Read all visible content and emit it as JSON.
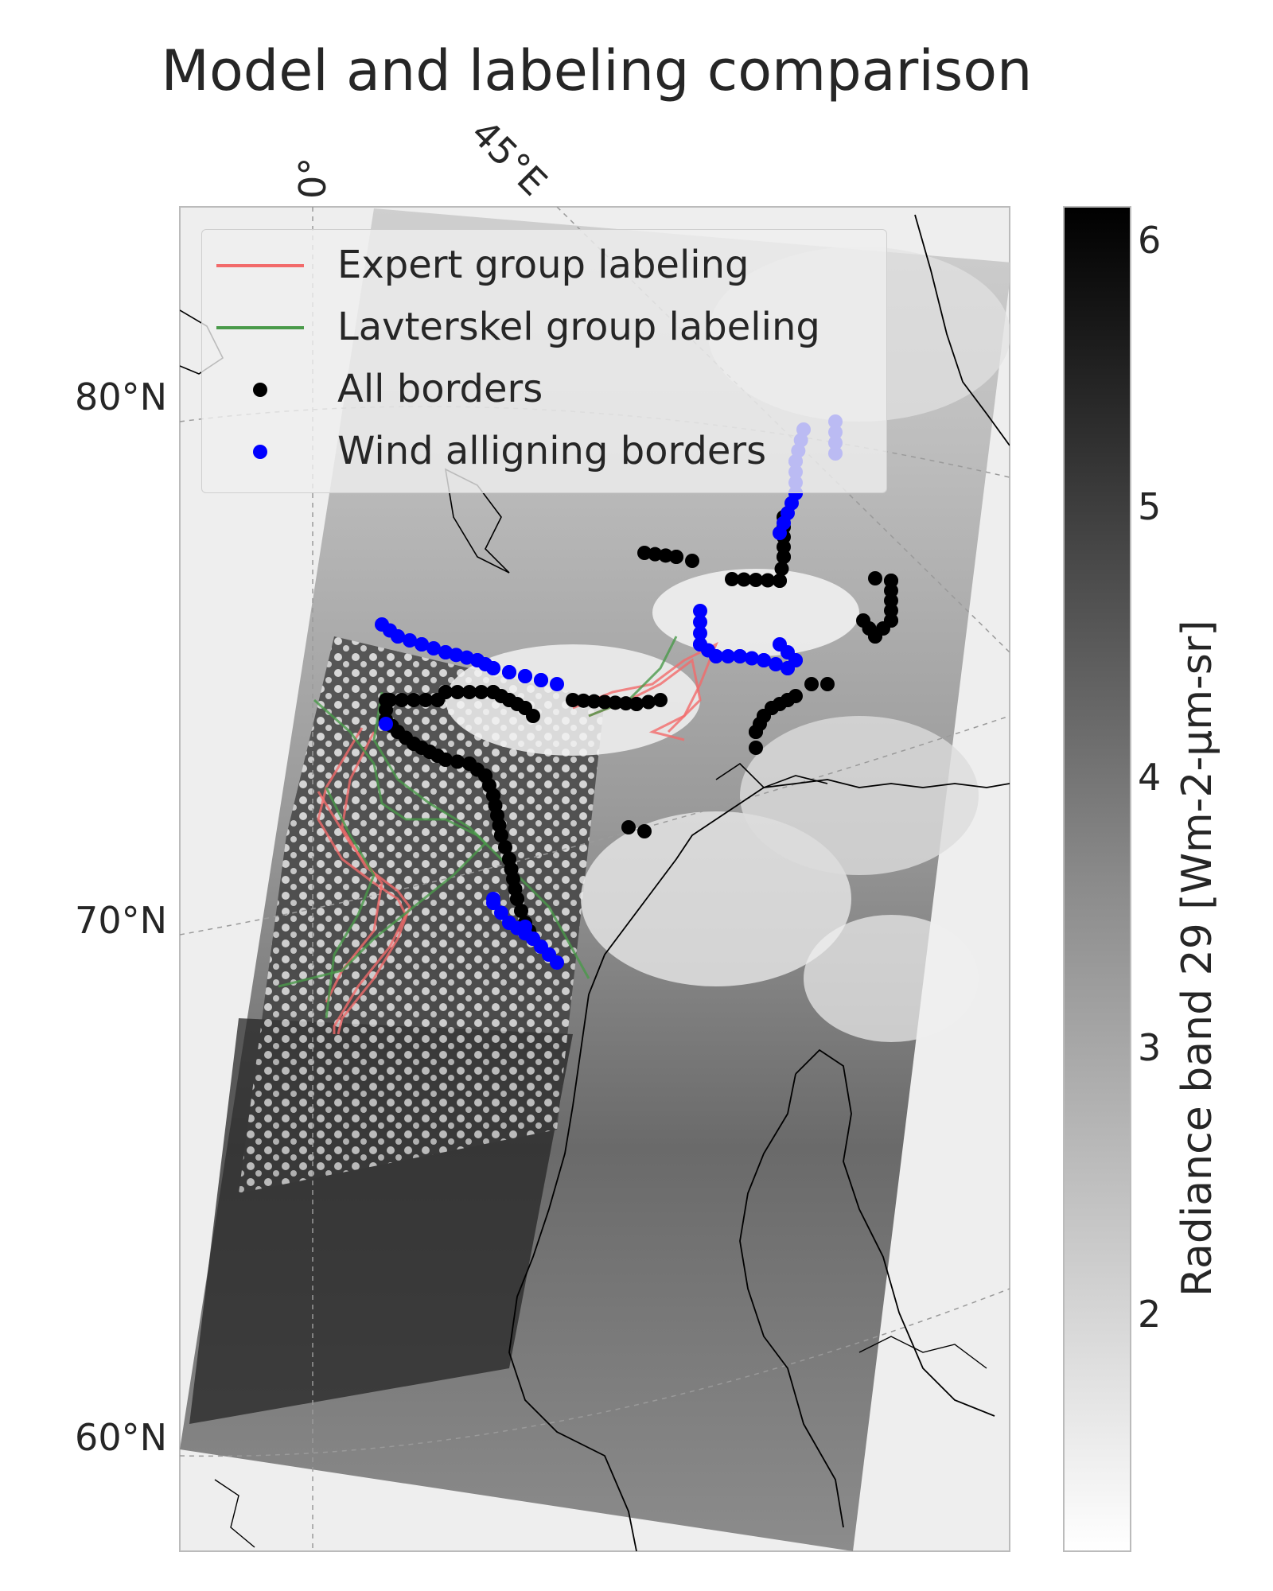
{
  "title": "Model and labeling comparison",
  "map": {
    "lat_labels": [
      "80°N",
      "70°N",
      "60°N"
    ],
    "lon_labels": [
      "0°",
      "45°E"
    ],
    "colormap": "greys",
    "background_color": "#eeeeee",
    "coastline_color": "#000000"
  },
  "legend": {
    "items": [
      {
        "label": "Expert group labeling",
        "kind": "line",
        "color": "#f26a6a"
      },
      {
        "label": "Lavterskel group labeling",
        "kind": "line",
        "color": "#4a9a4a"
      },
      {
        "label": "All borders",
        "kind": "dot",
        "color": "#000000"
      },
      {
        "label": "Wind alligning borders",
        "kind": "dot",
        "color": "#0000ff"
      }
    ]
  },
  "colorbar": {
    "label": "Radiance band 29 [Wm-2-µm-sr]",
    "ticks": [
      "6",
      "5",
      "4",
      "3",
      "2"
    ],
    "range": [
      1.2,
      6.2
    ]
  }
}
